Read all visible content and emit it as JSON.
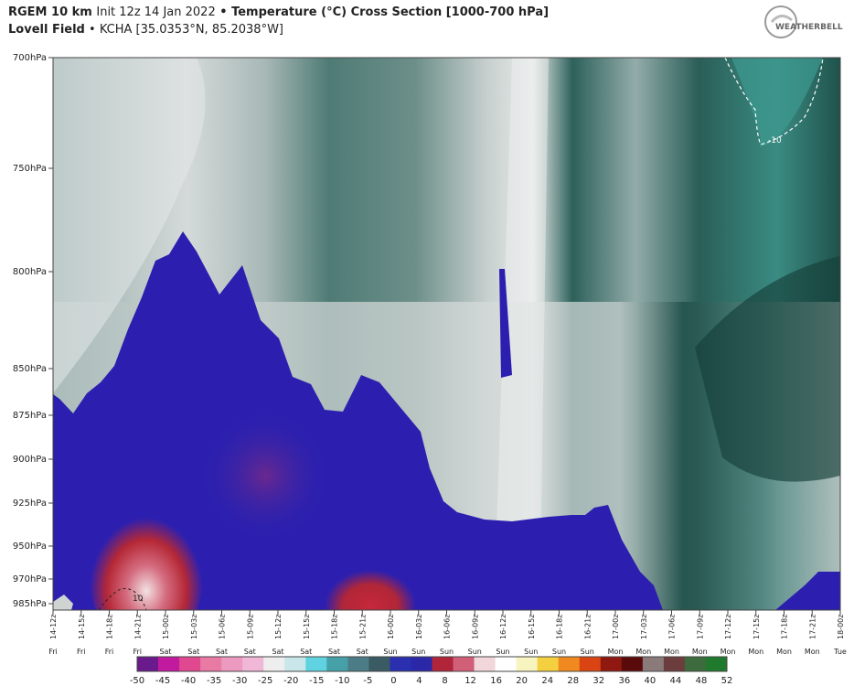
{
  "header": {
    "model": "RGEM 10 km",
    "init": "Init 12z 14 Jan 2022",
    "bullet": "•",
    "title": "Temperature (°C) Cross Section [1000-700 hPa]",
    "station_name": "Lovell Field",
    "station_info": "KCHA [35.0353°N, 85.2038°W]",
    "logo_text": "WeatherBELL"
  },
  "chart_data": {
    "type": "cross-section",
    "y_axis": {
      "scale": "pressure",
      "range_hpa": [
        985,
        700
      ],
      "ticks": [
        "700hPa",
        "750hPa",
        "800hPa",
        "850hPa",
        "875hPa",
        "900hPa",
        "925hPa",
        "950hPa",
        "970hPa",
        "985hPa"
      ]
    },
    "x_axis": {
      "times": [
        "14-12z",
        "14-15z",
        "14-18z",
        "14-21z",
        "15-00z",
        "15-03z",
        "15-06z",
        "15-09z",
        "15-12z",
        "15-15z",
        "15-18z",
        "15-21z",
        "16-00z",
        "16-03z",
        "16-06z",
        "16-09z",
        "16-12z",
        "16-15z",
        "16-18z",
        "16-21z",
        "17-00z",
        "17-03z",
        "17-06z",
        "17-09z",
        "17-12z",
        "17-15z",
        "17-18z",
        "17-21z",
        "18-00z"
      ],
      "days": [
        "Fri",
        "Fri",
        "Fri",
        "Fri",
        "Sat",
        "Sat",
        "Sat",
        "Sat",
        "Sat",
        "Sat",
        "Sat",
        "Sat",
        "Sun",
        "Sun",
        "Sun",
        "Sun",
        "Sun",
        "Sun",
        "Sun",
        "Sun",
        "Mon",
        "Mon",
        "Mon",
        "Mon",
        "Mon",
        "Mon",
        "Mon",
        "Mon",
        "Tue"
      ]
    },
    "contours": [
      {
        "label": "-10",
        "note": "dashed white contour near 17-15z at 700-720hPa"
      },
      {
        "label": "10",
        "note": "dashed black contour near 14-21z at 985hPa"
      }
    ],
    "colorbar": {
      "ticks": [
        "-50",
        "-45",
        "-40",
        "-35",
        "-30",
        "-25",
        "-20",
        "-15",
        "-10",
        "-5",
        "0",
        "4",
        "8",
        "12",
        "16",
        "20",
        "24",
        "28",
        "32",
        "36",
        "40",
        "44",
        "48",
        "52"
      ],
      "colors": [
        "#6a1a8c",
        "#c21a9f",
        "#e0488f",
        "#e87aa4",
        "#ec9ac0",
        "#f0b7d6",
        "#eeeeee",
        "#c9e6ea",
        "#5fd4e0",
        "#45a0a8",
        "#4c7d86",
        "#3a5b63",
        "#2a2fb0",
        "#2a27a8",
        "#b0253a",
        "#d25f78",
        "#f2d7da",
        "#ffffff",
        "#f7f4bf",
        "#f4d040",
        "#f08a20",
        "#d94412",
        "#8f1810",
        "#5a0a0a",
        "#8a7a7a",
        "#6c3d3d",
        "#3e6b3e",
        "#1f7a2e"
      ]
    }
  }
}
